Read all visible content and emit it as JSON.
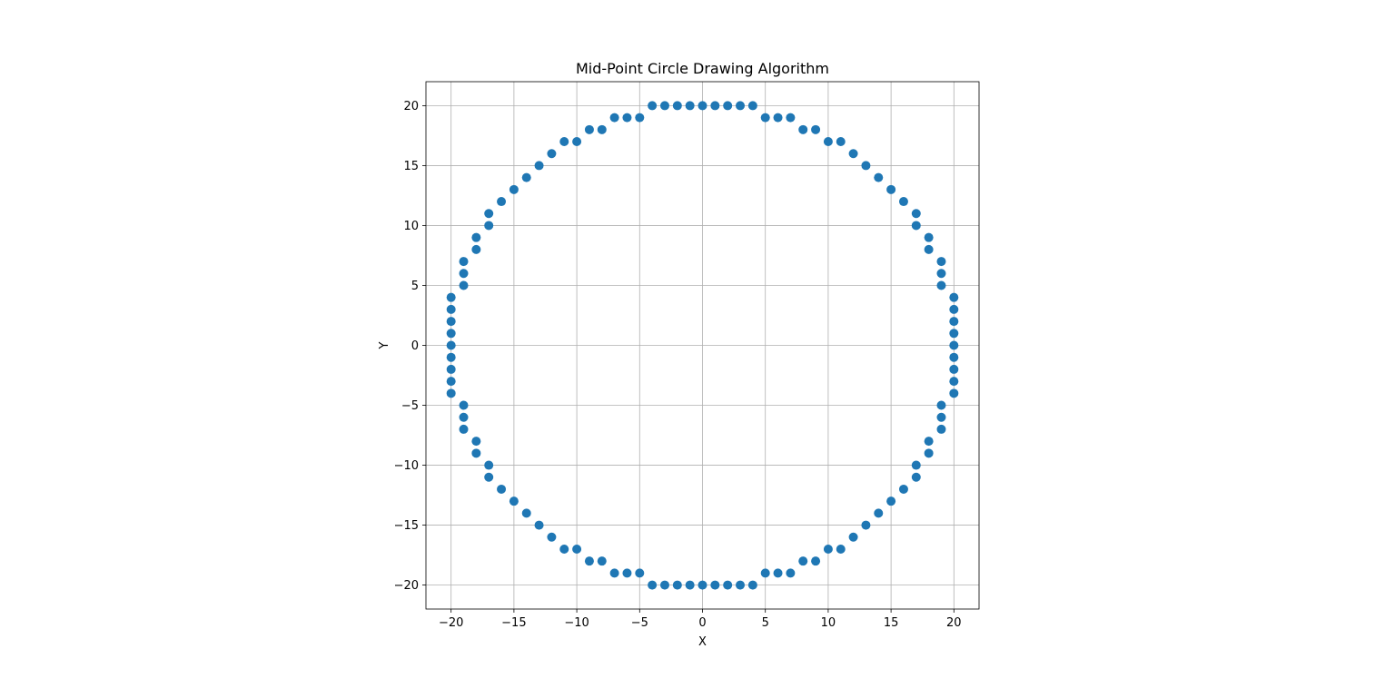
{
  "chart_data": {
    "type": "scatter",
    "title": "Mid-Point Circle Drawing Algorithm",
    "xlabel": "X",
    "ylabel": "Y",
    "xlim": [
      -22,
      22
    ],
    "ylim": [
      -22,
      22
    ],
    "grid": true,
    "x_ticks": [
      -20,
      -15,
      -10,
      -5,
      0,
      5,
      10,
      15,
      20
    ],
    "y_ticks": [
      -20,
      -15,
      -10,
      -5,
      0,
      5,
      10,
      15,
      20
    ],
    "x_tick_labels": [
      "−20",
      "−15",
      "−10",
      "−5",
      "0",
      "5",
      "10",
      "15",
      "20"
    ],
    "y_tick_labels": [
      "−20",
      "−15",
      "−10",
      "−5",
      "0",
      "5",
      "10",
      "15",
      "20"
    ],
    "colors": {
      "marker": "#1f77b4",
      "grid": "#b0b0b0",
      "axes": "#000000"
    },
    "points": [
      [
        -4,
        20
      ],
      [
        -3,
        20
      ],
      [
        -2,
        20
      ],
      [
        -1,
        20
      ],
      [
        0,
        20
      ],
      [
        1,
        20
      ],
      [
        2,
        20
      ],
      [
        3,
        20
      ],
      [
        4,
        20
      ],
      [
        -7,
        19
      ],
      [
        -6,
        19
      ],
      [
        -5,
        19
      ],
      [
        5,
        19
      ],
      [
        6,
        19
      ],
      [
        7,
        19
      ],
      [
        -9,
        18
      ],
      [
        -8,
        18
      ],
      [
        8,
        18
      ],
      [
        9,
        18
      ],
      [
        -11,
        17
      ],
      [
        -10,
        17
      ],
      [
        10,
        17
      ],
      [
        11,
        17
      ],
      [
        -12,
        16
      ],
      [
        12,
        16
      ],
      [
        -13,
        15
      ],
      [
        13,
        15
      ],
      [
        -14,
        14
      ],
      [
        14,
        14
      ],
      [
        -15,
        13
      ],
      [
        15,
        13
      ],
      [
        -16,
        12
      ],
      [
        16,
        12
      ],
      [
        -17,
        11
      ],
      [
        17,
        11
      ],
      [
        -17,
        10
      ],
      [
        17,
        10
      ],
      [
        -18,
        9
      ],
      [
        18,
        9
      ],
      [
        -18,
        8
      ],
      [
        18,
        8
      ],
      [
        -19,
        7
      ],
      [
        19,
        7
      ],
      [
        -19,
        6
      ],
      [
        19,
        6
      ],
      [
        -19,
        5
      ],
      [
        19,
        5
      ],
      [
        -20,
        4
      ],
      [
        20,
        4
      ],
      [
        -20,
        3
      ],
      [
        20,
        3
      ],
      [
        -20,
        2
      ],
      [
        20,
        2
      ],
      [
        -20,
        1
      ],
      [
        20,
        1
      ],
      [
        -20,
        0
      ],
      [
        20,
        0
      ],
      [
        -20,
        -1
      ],
      [
        20,
        -1
      ],
      [
        -20,
        -2
      ],
      [
        20,
        -2
      ],
      [
        -20,
        -3
      ],
      [
        20,
        -3
      ],
      [
        -20,
        -4
      ],
      [
        20,
        -4
      ],
      [
        -19,
        -5
      ],
      [
        19,
        -5
      ],
      [
        -19,
        -6
      ],
      [
        19,
        -6
      ],
      [
        -19,
        -7
      ],
      [
        19,
        -7
      ],
      [
        -18,
        -8
      ],
      [
        18,
        -8
      ],
      [
        -18,
        -9
      ],
      [
        18,
        -9
      ],
      [
        -17,
        -10
      ],
      [
        17,
        -10
      ],
      [
        -17,
        -11
      ],
      [
        17,
        -11
      ],
      [
        -16,
        -12
      ],
      [
        16,
        -12
      ],
      [
        -15,
        -13
      ],
      [
        15,
        -13
      ],
      [
        -14,
        -14
      ],
      [
        14,
        -14
      ],
      [
        -13,
        -15
      ],
      [
        13,
        -15
      ],
      [
        -12,
        -16
      ],
      [
        12,
        -16
      ],
      [
        -11,
        -17
      ],
      [
        -10,
        -17
      ],
      [
        10,
        -17
      ],
      [
        11,
        -17
      ],
      [
        -9,
        -18
      ],
      [
        -8,
        -18
      ],
      [
        8,
        -18
      ],
      [
        9,
        -18
      ],
      [
        -7,
        -19
      ],
      [
        -6,
        -19
      ],
      [
        -5,
        -19
      ],
      [
        5,
        -19
      ],
      [
        6,
        -19
      ],
      [
        7,
        -19
      ],
      [
        -4,
        -20
      ],
      [
        -3,
        -20
      ],
      [
        -2,
        -20
      ],
      [
        -1,
        -20
      ],
      [
        0,
        -20
      ],
      [
        1,
        -20
      ],
      [
        2,
        -20
      ],
      [
        3,
        -20
      ],
      [
        4,
        -20
      ]
    ]
  }
}
